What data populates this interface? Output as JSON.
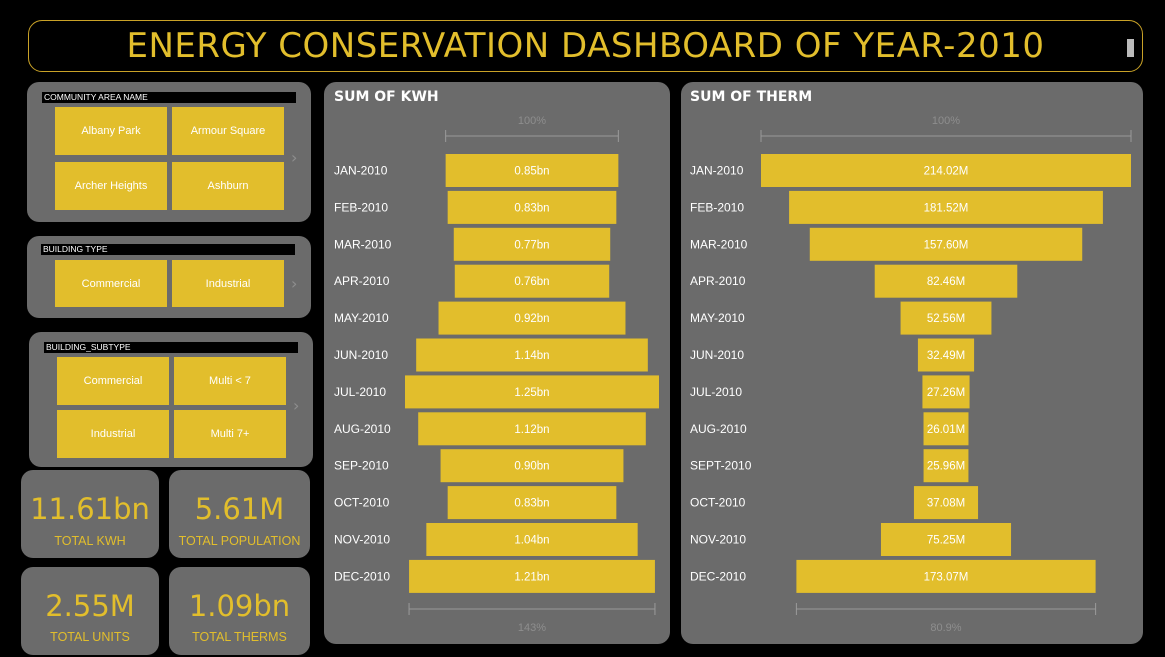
{
  "header": {
    "title": "ENERGY CONSERVATION DASHBOARD OF YEAR-2010"
  },
  "colors": {
    "accent": "#e2be2c",
    "panel": "#6b6b6b",
    "background": "#000000"
  },
  "slicers": {
    "community_area": {
      "label": "COMMUNITY AREA NAME",
      "items": [
        "Albany Park",
        "Armour Square",
        "Archer Heights",
        "Ashburn"
      ]
    },
    "building_type": {
      "label": "BUILDING TYPE",
      "items": [
        "Commercial",
        "Industrial"
      ]
    },
    "building_subtype": {
      "label": "BUILDING_SUBTYPE",
      "items": [
        "Commercial",
        "Multi < 7",
        "Industrial",
        "Multi 7+"
      ]
    }
  },
  "cards": {
    "total_kwh": {
      "value": "11.61bn",
      "label": "TOTAL KWH"
    },
    "total_population": {
      "value": "5.61M",
      "label": "TOTAL POPULATION"
    },
    "total_units": {
      "value": "2.55M",
      "label": "TOTAL UNITS"
    },
    "total_therms": {
      "value": "1.09bn",
      "label": "TOTAL THERMS"
    }
  },
  "chart_data": [
    {
      "type": "bar",
      "title": "SUM OF KWH",
      "top_pct_label": "100%",
      "bottom_pct_label": "143%",
      "categories": [
        "JAN-2010",
        "FEB-2010",
        "MAR-2010",
        "APR-2010",
        "MAY-2010",
        "JUN-2010",
        "JUL-2010",
        "AUG-2010",
        "SEP-2010",
        "OCT-2010",
        "NOV-2010",
        "DEC-2010"
      ],
      "values": [
        0.85,
        0.83,
        0.77,
        0.76,
        0.92,
        1.14,
        1.25,
        1.12,
        0.9,
        0.83,
        1.04,
        1.21
      ],
      "value_labels": [
        "0.85bn",
        "0.83bn",
        "0.77bn",
        "0.76bn",
        "0.92bn",
        "1.14bn",
        "1.25bn",
        "1.12bn",
        "0.90bn",
        "0.83bn",
        "1.04bn",
        "1.21bn"
      ],
      "unit": "bn",
      "bottom_reference_index": 11
    },
    {
      "type": "bar",
      "title": "SUM OF THERM",
      "top_pct_label": "100%",
      "bottom_pct_label": "80.9%",
      "categories": [
        "JAN-2010",
        "FEB-2010",
        "MAR-2010",
        "APR-2010",
        "MAY-2010",
        "JUN-2010",
        "JUL-2010",
        "AUG-2010",
        "SEPT-2010",
        "OCT-2010",
        "NOV-2010",
        "DEC-2010"
      ],
      "values": [
        214.02,
        181.52,
        157.6,
        82.46,
        52.56,
        32.49,
        27.26,
        26.01,
        25.96,
        37.08,
        75.25,
        173.07
      ],
      "value_labels": [
        "214.02M",
        "181.52M",
        "157.60M",
        "82.46M",
        "52.56M",
        "32.49M",
        "27.26M",
        "26.01M",
        "25.96M",
        "37.08M",
        "75.25M",
        "173.07M"
      ],
      "unit": "M",
      "bottom_reference_index": 11
    }
  ]
}
